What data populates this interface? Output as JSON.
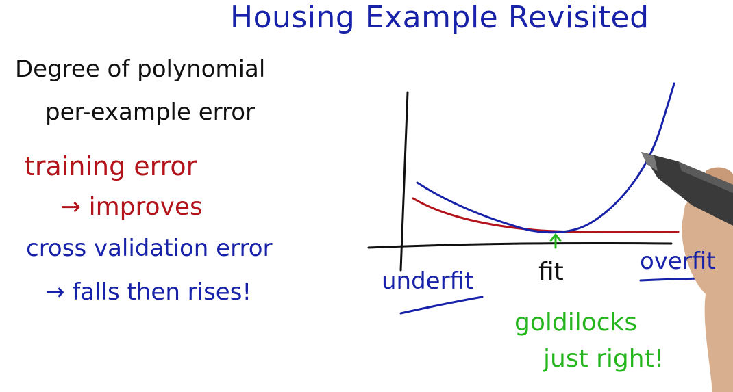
{
  "colors": {
    "ink_black": "#111111",
    "ink_blue": "#1722a8",
    "ink_red": "#b3131b",
    "ink_green": "#25b51d",
    "pen_body": "#3a3a3a",
    "hand_skin": "#d9b08f"
  },
  "title": "Housing Example Revisited",
  "notes": {
    "degree": "Degree of polynomial",
    "per_example": "per-example error",
    "training": "training error",
    "improves": "→ improves",
    "crossval": "cross validation error",
    "falls": "→ falls then rises!"
  },
  "chart_data": {
    "type": "line",
    "xlabel": "",
    "ylabel": "",
    "x_labels": [
      "underfit",
      "fit",
      "overfit"
    ],
    "series": [
      {
        "color": "#b3131b"
      },
      {
        "color": "#1722a8"
      }
    ],
    "annotation": {
      "line1": "goldilocks",
      "line2": "just right!",
      "points_to": "fit"
    }
  },
  "icons": {
    "pen": "pen-icon",
    "hand": "hand-icon"
  }
}
